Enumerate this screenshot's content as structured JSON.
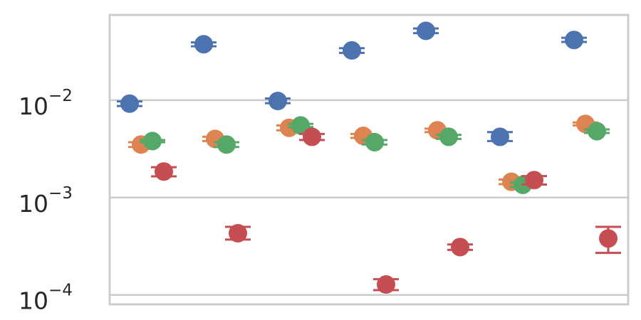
{
  "chart_data": {
    "type": "scatter",
    "yscale": "log",
    "ylim": [
      8e-05,
      0.075
    ],
    "yticks": [
      {
        "value": 0.01,
        "base": "10",
        "exp": "−2"
      },
      {
        "value": 0.001,
        "base": "10",
        "exp": "−3"
      },
      {
        "value": 0.0001,
        "base": "10",
        "exp": "−4"
      }
    ],
    "grid": true,
    "legend": "none",
    "groups": 7,
    "series": [
      {
        "color": "#4c72b0",
        "points": [
          {
            "group": 0,
            "y": 0.0092,
            "err_lo": 0.0087,
            "err_hi": 0.0097
          },
          {
            "group": 1,
            "y": 0.0375,
            "err_lo": 0.0357,
            "err_hi": 0.0392
          },
          {
            "group": 2,
            "y": 0.0098,
            "err_lo": 0.0093,
            "err_hi": 0.0104
          },
          {
            "group": 3,
            "y": 0.0324,
            "err_lo": 0.0306,
            "err_hi": 0.0342
          },
          {
            "group": 4,
            "y": 0.0515,
            "err_lo": 0.0487,
            "err_hi": 0.0545
          },
          {
            "group": 5,
            "y": 0.0042,
            "err_lo": 0.0038,
            "err_hi": 0.0047
          },
          {
            "group": 6,
            "y": 0.0415,
            "err_lo": 0.0396,
            "err_hi": 0.0437
          }
        ]
      },
      {
        "color": "#dd8452",
        "points": [
          {
            "group": 0,
            "y": 0.0035,
            "err_lo": 0.0033,
            "err_hi": 0.0037
          },
          {
            "group": 1,
            "y": 0.004,
            "err_lo": 0.0038,
            "err_hi": 0.0042
          },
          {
            "group": 2,
            "y": 0.0052,
            "err_lo": 0.0049,
            "err_hi": 0.0055
          },
          {
            "group": 3,
            "y": 0.0043,
            "err_lo": 0.0041,
            "err_hi": 0.0045
          },
          {
            "group": 4,
            "y": 0.0049,
            "err_lo": 0.0047,
            "err_hi": 0.0051
          },
          {
            "group": 5,
            "y": 0.00145,
            "err_lo": 0.00137,
            "err_hi": 0.00153
          },
          {
            "group": 6,
            "y": 0.0057,
            "err_lo": 0.0055,
            "err_hi": 0.0059
          }
        ]
      },
      {
        "color": "#55a868",
        "points": [
          {
            "group": 0,
            "y": 0.0038,
            "err_lo": 0.0037,
            "err_hi": 0.0039
          },
          {
            "group": 1,
            "y": 0.0035,
            "err_lo": 0.0033,
            "err_hi": 0.0037
          },
          {
            "group": 2,
            "y": 0.0055,
            "err_lo": 0.0053,
            "err_hi": 0.0057
          },
          {
            "group": 3,
            "y": 0.0037,
            "err_lo": 0.0035,
            "err_hi": 0.0039
          },
          {
            "group": 4,
            "y": 0.0042,
            "err_lo": 0.004,
            "err_hi": 0.0044
          },
          {
            "group": 5,
            "y": 0.00135,
            "err_lo": 0.00128,
            "err_hi": 0.00142
          },
          {
            "group": 6,
            "y": 0.0048,
            "err_lo": 0.0046,
            "err_hi": 0.005
          }
        ]
      },
      {
        "color": "#c44e52",
        "points": [
          {
            "group": 0,
            "y": 0.00185,
            "err_lo": 0.00165,
            "err_hi": 0.00205
          },
          {
            "group": 1,
            "y": 0.00043,
            "err_lo": 0.00037,
            "err_hi": 0.0005
          },
          {
            "group": 2,
            "y": 0.0042,
            "err_lo": 0.0039,
            "err_hi": 0.0045
          },
          {
            "group": 3,
            "y": 0.000128,
            "err_lo": 0.000112,
            "err_hi": 0.000145
          },
          {
            "group": 4,
            "y": 0.00031,
            "err_lo": 0.00029,
            "err_hi": 0.00033
          },
          {
            "group": 5,
            "y": 0.00151,
            "err_lo": 0.00136,
            "err_hi": 0.00166
          },
          {
            "group": 6,
            "y": 0.00038,
            "err_lo": 0.00027,
            "err_hi": 0.0005
          }
        ]
      }
    ]
  }
}
